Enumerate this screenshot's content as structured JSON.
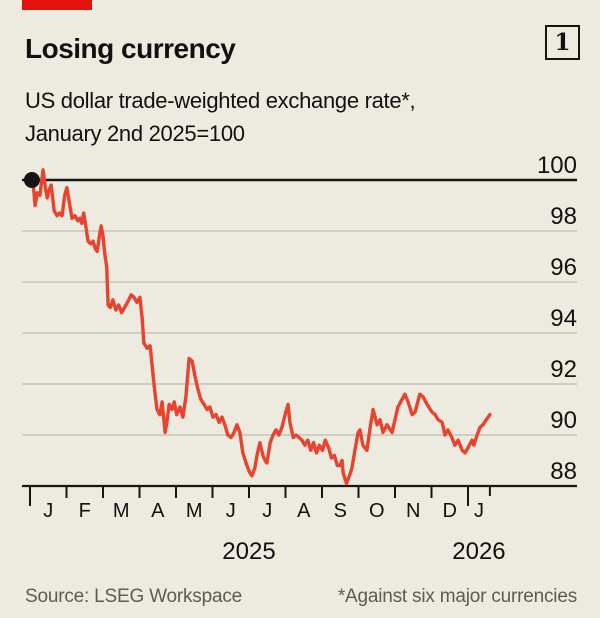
{
  "header": {
    "title": "Losing currency",
    "index_label": "1",
    "subtitle_line1": "US dollar trade-weighted exchange rate*,",
    "subtitle_line2": "January 2nd 2025=100"
  },
  "footer": {
    "source": "Source: LSEG Workspace",
    "footnote": "*Against six major currencies"
  },
  "colors": {
    "background": "#EDEAE0",
    "accent_red": "#E3120B",
    "line_red": "#E8432E",
    "text": "#111111",
    "axis_black": "#161616",
    "gridline": "#C6C4B9",
    "footer_text": "#5C5B55"
  },
  "chart_data": {
    "type": "line",
    "title": "Losing currency",
    "subtitle": "US dollar trade-weighted exchange rate*, January 2nd 2025=100",
    "x_unit": "months since 2025-01-01",
    "x_range": [
      0,
      12.6
    ],
    "month_labels": [
      "J",
      "F",
      "M",
      "A",
      "M",
      "J",
      "J",
      "A",
      "S",
      "O",
      "N",
      "D",
      "J"
    ],
    "year_labels": [
      {
        "label": "2025",
        "span": [
          0,
          12
        ]
      },
      {
        "label": "2026",
        "span": [
          12,
          12.6
        ]
      }
    ],
    "y_ticks": [
      88,
      90,
      92,
      94,
      96,
      98,
      100
    ],
    "ylim": [
      88,
      100.6
    ],
    "grid": true,
    "baseline_value": 100,
    "start_marker": {
      "x": 0.08,
      "value": 100
    },
    "legend_position": "none",
    "series": [
      {
        "name": "US dollar trade-weighted exchange rate (Jan 2nd 2025 = 100)",
        "points": [
          [
            0.08,
            100.0
          ],
          [
            0.14,
            99.0
          ],
          [
            0.2,
            99.5
          ],
          [
            0.27,
            99.4
          ],
          [
            0.36,
            100.4
          ],
          [
            0.42,
            99.7
          ],
          [
            0.47,
            99.3
          ],
          [
            0.52,
            99.6
          ],
          [
            0.58,
            99.8
          ],
          [
            0.66,
            98.8
          ],
          [
            0.74,
            98.6
          ],
          [
            0.81,
            98.7
          ],
          [
            0.88,
            98.6
          ],
          [
            0.95,
            99.4
          ],
          [
            1.01,
            99.7
          ],
          [
            1.08,
            99.1
          ],
          [
            1.15,
            98.5
          ],
          [
            1.23,
            98.6
          ],
          [
            1.31,
            98.4
          ],
          [
            1.37,
            98.5
          ],
          [
            1.42,
            98.3
          ],
          [
            1.47,
            98.7
          ],
          [
            1.53,
            98.2
          ],
          [
            1.59,
            97.6
          ],
          [
            1.66,
            97.5
          ],
          [
            1.73,
            97.6
          ],
          [
            1.79,
            97.3
          ],
          [
            1.84,
            97.2
          ],
          [
            1.89,
            97.7
          ],
          [
            1.95,
            98.2
          ],
          [
            2.0,
            97.8
          ],
          [
            2.05,
            97.1
          ],
          [
            2.1,
            96.6
          ],
          [
            2.14,
            95.1
          ],
          [
            2.2,
            95.0
          ],
          [
            2.27,
            95.3
          ],
          [
            2.35,
            94.9
          ],
          [
            2.43,
            95.1
          ],
          [
            2.51,
            94.8
          ],
          [
            2.59,
            95.0
          ],
          [
            2.67,
            95.2
          ],
          [
            2.77,
            95.5
          ],
          [
            2.85,
            95.4
          ],
          [
            2.93,
            95.2
          ],
          [
            3.01,
            95.4
          ],
          [
            3.07,
            94.6
          ],
          [
            3.12,
            93.6
          ],
          [
            3.21,
            93.4
          ],
          [
            3.29,
            93.5
          ],
          [
            3.34,
            92.8
          ],
          [
            3.42,
            91.7
          ],
          [
            3.48,
            91.0
          ],
          [
            3.56,
            90.8
          ],
          [
            3.62,
            91.3
          ],
          [
            3.7,
            90.1
          ],
          [
            3.75,
            90.5
          ],
          [
            3.81,
            91.2
          ],
          [
            3.89,
            91.0
          ],
          [
            3.95,
            91.3
          ],
          [
            4.02,
            90.8
          ],
          [
            4.11,
            91.1
          ],
          [
            4.19,
            90.7
          ],
          [
            4.27,
            91.5
          ],
          [
            4.36,
            93.0
          ],
          [
            4.44,
            92.9
          ],
          [
            4.52,
            92.3
          ],
          [
            4.6,
            91.8
          ],
          [
            4.68,
            91.4
          ],
          [
            4.77,
            91.2
          ],
          [
            4.85,
            91.0
          ],
          [
            4.93,
            91.1
          ],
          [
            5.01,
            90.7
          ],
          [
            5.1,
            90.8
          ],
          [
            5.18,
            90.5
          ],
          [
            5.26,
            90.7
          ],
          [
            5.34,
            90.4
          ],
          [
            5.42,
            90.0
          ],
          [
            5.51,
            89.9
          ],
          [
            5.59,
            90.1
          ],
          [
            5.67,
            90.4
          ],
          [
            5.75,
            90.1
          ],
          [
            5.83,
            89.3
          ],
          [
            5.92,
            88.9
          ],
          [
            5.97,
            88.7
          ],
          [
            6.03,
            88.5
          ],
          [
            6.08,
            88.4
          ],
          [
            6.16,
            88.7
          ],
          [
            6.22,
            89.2
          ],
          [
            6.3,
            89.7
          ],
          [
            6.38,
            89.2
          ],
          [
            6.44,
            89.0
          ],
          [
            6.49,
            88.9
          ],
          [
            6.58,
            89.7
          ],
          [
            6.66,
            90.0
          ],
          [
            6.74,
            90.2
          ],
          [
            6.82,
            90.0
          ],
          [
            6.9,
            90.3
          ],
          [
            6.99,
            90.8
          ],
          [
            7.07,
            91.2
          ],
          [
            7.12,
            90.5
          ],
          [
            7.21,
            89.9
          ],
          [
            7.29,
            90.0
          ],
          [
            7.37,
            89.9
          ],
          [
            7.45,
            89.8
          ],
          [
            7.53,
            89.6
          ],
          [
            7.61,
            89.8
          ],
          [
            7.69,
            89.4
          ],
          [
            7.77,
            89.7
          ],
          [
            7.85,
            89.3
          ],
          [
            7.93,
            89.6
          ],
          [
            8.01,
            89.4
          ],
          [
            8.09,
            89.8
          ],
          [
            8.18,
            89.5
          ],
          [
            8.26,
            89.1
          ],
          [
            8.34,
            89.2
          ],
          [
            8.42,
            88.8
          ],
          [
            8.49,
            88.8
          ],
          [
            8.55,
            89.0
          ],
          [
            8.58,
            88.5
          ],
          [
            8.67,
            88.1
          ],
          [
            8.75,
            88.4
          ],
          [
            8.82,
            88.7
          ],
          [
            8.9,
            89.4
          ],
          [
            8.99,
            90.1
          ],
          [
            9.04,
            90.2
          ],
          [
            9.12,
            89.6
          ],
          [
            9.23,
            89.4
          ],
          [
            9.32,
            90.3
          ],
          [
            9.4,
            91.0
          ],
          [
            9.51,
            90.4
          ],
          [
            9.59,
            90.6
          ],
          [
            9.67,
            90.1
          ],
          [
            9.78,
            90.4
          ],
          [
            9.92,
            90.1
          ],
          [
            10.08,
            91.1
          ],
          [
            10.27,
            91.6
          ],
          [
            10.36,
            91.3
          ],
          [
            10.47,
            90.8
          ],
          [
            10.55,
            90.9
          ],
          [
            10.68,
            91.6
          ],
          [
            10.77,
            91.5
          ],
          [
            10.88,
            91.2
          ],
          [
            11.01,
            90.9
          ],
          [
            11.1,
            90.8
          ],
          [
            11.18,
            90.6
          ],
          [
            11.29,
            90.5
          ],
          [
            11.37,
            90.0
          ],
          [
            11.45,
            90.2
          ],
          [
            11.56,
            89.9
          ],
          [
            11.64,
            89.6
          ],
          [
            11.73,
            89.8
          ],
          [
            11.84,
            89.4
          ],
          [
            11.92,
            89.3
          ],
          [
            12.0,
            89.5
          ],
          [
            12.11,
            89.8
          ],
          [
            12.16,
            89.6
          ],
          [
            12.25,
            90.0
          ],
          [
            12.33,
            90.3
          ],
          [
            12.41,
            90.4
          ],
          [
            12.5,
            90.6
          ],
          [
            12.6,
            90.8
          ]
        ]
      }
    ]
  }
}
